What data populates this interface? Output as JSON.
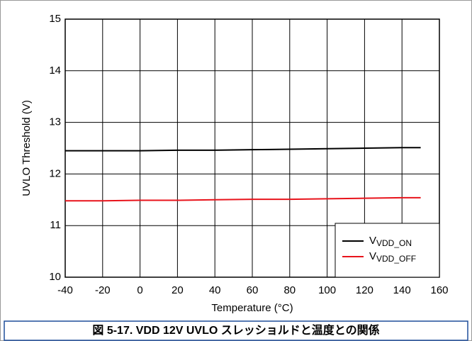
{
  "chart_data": {
    "type": "line",
    "caption": "図 5-17. VDD 12V UVLO スレッショルドと温度との関係",
    "x_label": "Temperature (°C)",
    "y_label": "UVLO Threshold (V)",
    "x": [
      -40,
      -20,
      0,
      20,
      40,
      60,
      80,
      100,
      120,
      140,
      150
    ],
    "series": [
      {
        "name": "VVDD_ON",
        "color": "#000000",
        "values": [
          12.45,
          12.45,
          12.45,
          12.46,
          12.46,
          12.47,
          12.48,
          12.49,
          12.5,
          12.51,
          12.51
        ]
      },
      {
        "name": "VVDD_OFF",
        "color": "#e8141c",
        "values": [
          11.48,
          11.48,
          11.49,
          11.49,
          11.5,
          11.51,
          11.51,
          11.52,
          11.53,
          11.54,
          11.54
        ]
      }
    ],
    "xlim": [
      -40,
      160
    ],
    "xticks": [
      -40,
      -20,
      0,
      20,
      40,
      60,
      80,
      100,
      120,
      140,
      160
    ],
    "ylim": [
      10,
      15
    ],
    "yticks": [
      10,
      11,
      12,
      13,
      14,
      15
    ],
    "grid": true,
    "legend": "lower right"
  }
}
